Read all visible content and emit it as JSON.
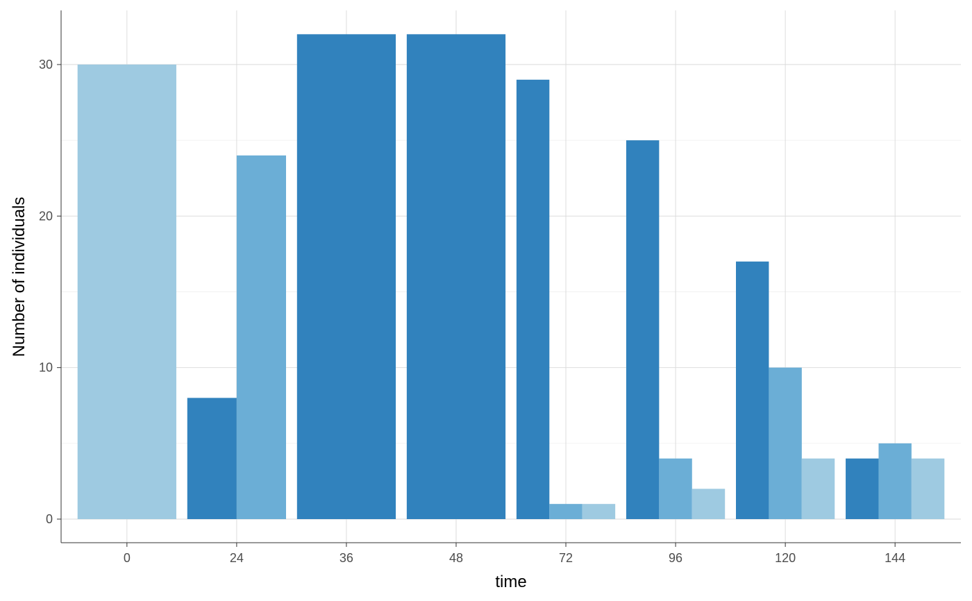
{
  "chart_data": {
    "type": "bar",
    "layout": "dodged",
    "title": "",
    "xlabel": "time",
    "ylabel": "Number of individuals",
    "categories": [
      "0",
      "24",
      "36",
      "48",
      "72",
      "96",
      "120",
      "144"
    ],
    "y_ticks": [
      0,
      10,
      20,
      30
    ],
    "ylim": [
      0,
      33.5
    ],
    "grid": true,
    "legend": "none",
    "colors": [
      "#3182bd",
      "#6baed6",
      "#9ecae1"
    ],
    "series": [
      {
        "values": [
          null,
          8,
          32,
          32,
          29,
          25,
          17,
          4
        ]
      },
      {
        "values": [
          null,
          24,
          null,
          null,
          1,
          4,
          10,
          5
        ]
      },
      {
        "values": [
          30,
          null,
          null,
          null,
          1,
          2,
          4,
          4
        ]
      }
    ]
  }
}
